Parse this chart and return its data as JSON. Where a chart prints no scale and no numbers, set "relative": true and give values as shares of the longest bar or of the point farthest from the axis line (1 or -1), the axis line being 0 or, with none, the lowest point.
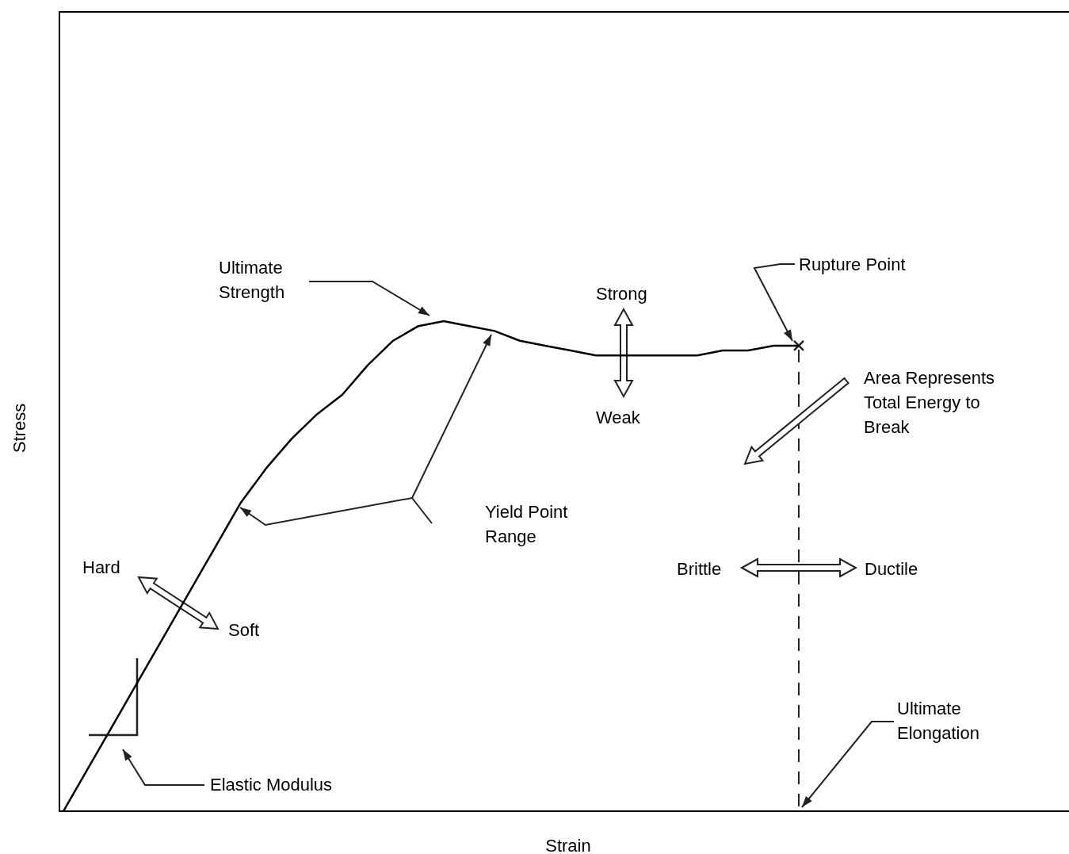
{
  "chart_data": {
    "type": "line",
    "relative": true,
    "xlabel": "Strain",
    "ylabel": "Stress",
    "color": "#000000",
    "categories": [
      null,
      null,
      null,
      null,
      null,
      null,
      null,
      null,
      null,
      null,
      null,
      null,
      null,
      null,
      null,
      null,
      null,
      null,
      null,
      null,
      null,
      null,
      null,
      null,
      null,
      null,
      null,
      null,
      null,
      null
    ],
    "values": [
      0,
      0.09,
      0.18,
      0.27,
      0.36,
      0.45,
      0.54,
      0.63,
      0.7,
      0.76,
      0.81,
      0.85,
      0.91,
      0.96,
      0.99,
      1,
      0.99,
      0.98,
      0.96,
      0.95,
      0.94,
      0.93,
      0.93,
      0.93,
      0.93,
      0.93,
      0.94,
      0.94,
      0.95,
      0.95
    ],
    "annotations": [
      "Ultimate\nStrength",
      "Rupture Point",
      "Strong",
      "Weak",
      "Area Represents\nTotal Energy to\nBreak",
      "Yield Point\nRange",
      "Hard",
      "Soft",
      "Brittle",
      "Ductile",
      "Ultimate\nElongation",
      "Elastic Modulus"
    ]
  }
}
